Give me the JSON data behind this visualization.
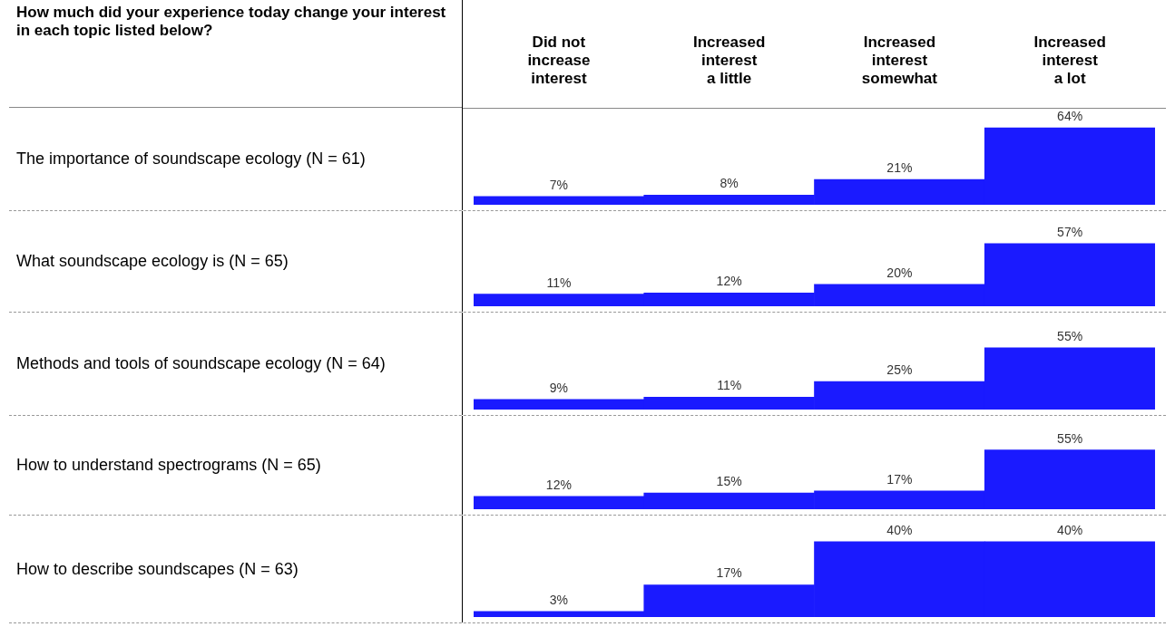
{
  "chart_data": [
    {
      "type": "bar",
      "title": "How much did your experience today change your interest in each topic listed below?",
      "ylabel": "The importance of soundscape ecology (N = 61)",
      "categories": [
        "Did not increase interest",
        "Increased interest a little",
        "Increased interest somewhat",
        "Increased interest a lot"
      ],
      "values": [
        7,
        8,
        21,
        64
      ],
      "value_labels": [
        "7%",
        "8%",
        "21%",
        "64%"
      ],
      "color": "#1a1aff",
      "tick_labels": "x"
    },
    {
      "type": "bar",
      "ylabel": "What soundscape ecology is (N = 65)",
      "categories": [
        null,
        null,
        null,
        null
      ],
      "values": [
        11,
        12,
        20,
        57
      ],
      "value_labels": [
        "11%",
        "12%",
        "20%",
        "57%"
      ],
      "color": "#1a1aff",
      "tick_labels": false
    },
    {
      "type": "bar",
      "ylabel": "Methods and tools of soundscape ecology (N = 64)",
      "categories": [
        null,
        null,
        null,
        null
      ],
      "values": [
        9,
        11,
        25,
        55
      ],
      "value_labels": [
        "9%",
        "11%",
        "25%",
        "55%"
      ],
      "color": "#1a1aff",
      "tick_labels": false
    },
    {
      "type": "bar",
      "ylabel": "How to understand spectrograms (N = 65)",
      "categories": [
        null,
        null,
        null,
        null
      ],
      "values": [
        12,
        15,
        17,
        55
      ],
      "value_labels": [
        "12%",
        "15%",
        "17%",
        "55%"
      ],
      "color": "#1a1aff",
      "tick_labels": false
    },
    {
      "type": "bar",
      "ylabel": "How to describe soundscapes (N = 63)",
      "categories": [
        null,
        null,
        null,
        null
      ],
      "values": [
        3,
        17,
        40,
        40
      ],
      "value_labels": [
        "3%",
        "17%",
        "40%",
        "40%"
      ],
      "color": "#1a1aff",
      "tick_labels": false
    }
  ]
}
